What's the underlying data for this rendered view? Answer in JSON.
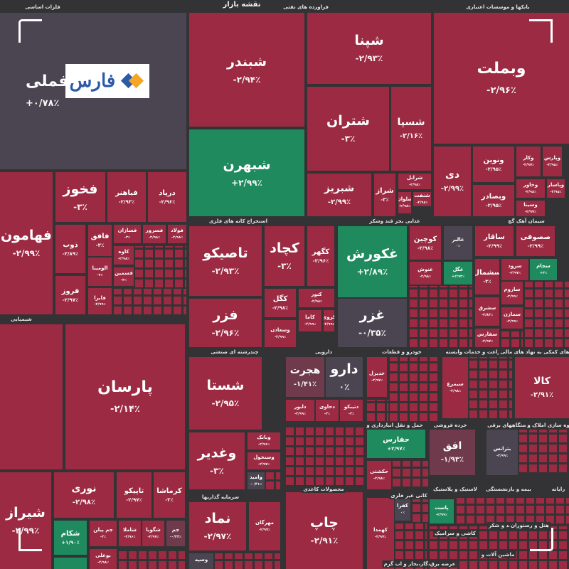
{
  "header": {
    "title": "نقشه بازار"
  },
  "logo": {
    "text": "فارس"
  },
  "colors": {
    "negative": "#9b2a42",
    "positive": "#1f8a5e",
    "neutral": "#4a4550",
    "slight_negative": "#6e3a4c",
    "background": "#333336",
    "logo_blue": "#2c5aa8",
    "logo_orange": "#f5a623"
  },
  "sectors": [
    "فلزات اساسی",
    "فراورده های نفتی",
    "بانکها و موسسات اعتباری",
    "استخراج کانه های فلزی",
    "غذایی بجز قند وشکر",
    "سیمان آهک گچ",
    "شیمیایی",
    "چندرشته ای صنعتی",
    "دارویی",
    "خودرو و قطعات",
    "زراعت و خدمات وابسته",
    "های کمکی به نهاد های مالی",
    "حمل و نقل انبارداری و",
    "خرده فروشی",
    "دستگاههای برقی",
    "انبوه سازی املاک و",
    "محصولات کاغذی",
    "سرمایه گذاریها",
    "کانی غیر فلزی",
    "لاستیک و پلاستیک",
    "بیمه و بازنشستگی",
    "رایانه",
    "قند و شکر",
    "هتل و رستوران",
    "کاشی و سرامیک",
    "ماشین آلات و",
    "عرضه برق،گاز،بخار و اب گرم"
  ],
  "tiles": [
    {
      "symbol": "فملی",
      "change": "+۰/۷۸٪",
      "tone": "gray"
    },
    {
      "symbol": "شبندر",
      "change": "-۲/۹۴٪",
      "tone": "red"
    },
    {
      "symbol": "شبهرن",
      "change": "+۲/۹۹٪",
      "tone": "green"
    },
    {
      "symbol": "شپنا",
      "change": "-۲/۹۳٪",
      "tone": "red"
    },
    {
      "symbol": "شتران",
      "change": "-۳٪",
      "tone": "red"
    },
    {
      "symbol": "شسپا",
      "change": "-۲/۱۶٪",
      "tone": "red"
    },
    {
      "symbol": "شبریز",
      "change": "-۲/۹۹٪",
      "tone": "red"
    },
    {
      "symbol": "شراز",
      "change": "-۳٪",
      "tone": "red"
    },
    {
      "symbol": "شرانل",
      "change": "-۲/۹۸٪",
      "tone": "red"
    },
    {
      "symbol": "شلوان",
      "change": "-۲/۹۸٪",
      "tone": "red"
    },
    {
      "symbol": "شنفت",
      "change": "-۲/۹۸٪",
      "tone": "red"
    },
    {
      "symbol": "وبملت",
      "change": "-۲/۹۶٪",
      "tone": "red"
    },
    {
      "symbol": "دی",
      "change": "-۲/۹۹٪",
      "tone": "red"
    },
    {
      "symbol": "ونوین",
      "change": "-۲/۹۵٪",
      "tone": "red"
    },
    {
      "symbol": "وبصادر",
      "change": "-۲/۹۵٪",
      "tone": "red"
    },
    {
      "symbol": "وکار",
      "change": "-۲/۹۷٪",
      "tone": "red"
    },
    {
      "symbol": "وپارس",
      "change": "-۲/۹۵٪",
      "tone": "red"
    },
    {
      "symbol": "وخاور",
      "change": "-۲/۹۸٪",
      "tone": "red"
    },
    {
      "symbol": "وسینا",
      "change": "-۲/۹۷٪",
      "tone": "red"
    },
    {
      "symbol": "وپاسار",
      "change": "-۲/۹۵٪",
      "tone": "red"
    },
    {
      "symbol": "فهامون",
      "change": "-۲/۹۹٪",
      "tone": "red"
    },
    {
      "symbol": "فخوز",
      "change": "-۳٪",
      "tone": "red"
    },
    {
      "symbol": "فباهنر",
      "change": "-۲/۹۳٪",
      "tone": "red"
    },
    {
      "symbol": "درپاد",
      "change": "-۲/۹۶٪",
      "tone": "red"
    },
    {
      "symbol": "ذوب",
      "change": "-۲/۸۹٪",
      "tone": "red"
    },
    {
      "symbol": "فافق",
      "change": "-۳٪",
      "tone": "red"
    },
    {
      "symbol": "الومینا",
      "change": "-۳٪",
      "tone": "red"
    },
    {
      "symbol": "فروز",
      "change": "-۲/۹۷٪",
      "tone": "red"
    },
    {
      "symbol": "فایرا",
      "change": "-۲/۹۹٪",
      "tone": "red"
    },
    {
      "symbol": "فسازان",
      "change": "-۳٪",
      "tone": "red"
    },
    {
      "symbol": "فسرور",
      "change": "-۲/۹۸٪",
      "tone": "red"
    },
    {
      "symbol": "فولاد",
      "change": "-۲/۹۸٪",
      "tone": "red"
    },
    {
      "symbol": "کاوه",
      "change": "-۲/۹۸٪",
      "tone": "red"
    },
    {
      "symbol": "فسمین",
      "change": "-۳٪",
      "tone": "red"
    },
    {
      "symbol": "تاصیکو",
      "change": "-۲/۹۳٪",
      "tone": "red"
    },
    {
      "symbol": "فزر",
      "change": "-۲/۹۶٪",
      "tone": "red"
    },
    {
      "symbol": "کچاد",
      "change": "-۳٪",
      "tone": "red"
    },
    {
      "symbol": "کگهر",
      "change": "-۲/۹۶٪",
      "tone": "red"
    },
    {
      "symbol": "کگل",
      "change": "-۲/۹۸٪",
      "tone": "red"
    },
    {
      "symbol": "وسعادن",
      "change": "-۲/۹۹٪",
      "tone": "red"
    },
    {
      "symbol": "کنور",
      "change": "-۲/۹۸٪",
      "tone": "red"
    },
    {
      "symbol": "کاما",
      "change": "-۲/۹۹٪",
      "tone": "red"
    },
    {
      "symbol": "کروی",
      "change": "-۲/۹۹٪",
      "tone": "red"
    },
    {
      "symbol": "غکورش",
      "change": "+۲/۸۹٪",
      "tone": "green"
    },
    {
      "symbol": "غزر",
      "change": "-۰/۳۵٪",
      "tone": "gray"
    },
    {
      "symbol": "کوچین",
      "change": "-۲/۹۸٪",
      "tone": "red"
    },
    {
      "symbol": "غالبر",
      "change": "۰٪",
      "tone": "gray"
    },
    {
      "symbol": "غنوش",
      "change": "-۲/۹۸٪",
      "tone": "red"
    },
    {
      "symbol": "غگل",
      "change": "+۲/۹۳٪",
      "tone": "green"
    },
    {
      "symbol": "ساقار",
      "change": "-۲/۹۹٪",
      "tone": "red"
    },
    {
      "symbol": "صصوفی",
      "change": "-۲/۹۹٪",
      "tone": "red"
    },
    {
      "symbol": "سشمال",
      "change": "-۳٪",
      "tone": "red"
    },
    {
      "symbol": "سرود",
      "change": "-۲/۹۷٪",
      "tone": "red"
    },
    {
      "symbol": "سجام",
      "change": "+۳٪",
      "tone": "green"
    },
    {
      "symbol": "سشرق",
      "change": "-۲/۸۳٪",
      "tone": "red"
    },
    {
      "symbol": "ساروم",
      "change": "-۲/۹۹٪",
      "tone": "red"
    },
    {
      "symbol": "سفارس",
      "change": "-۲/۹۷٪",
      "tone": "red"
    },
    {
      "symbol": "سمازن",
      "change": "-۲/۹۹٪",
      "tone": "red"
    },
    {
      "symbol": "پارسان",
      "change": "-۲/۱۴٪",
      "tone": "red"
    },
    {
      "symbol": "شیراز",
      "change": "-۲/۹۹٪",
      "tone": "red"
    },
    {
      "symbol": "نوری",
      "change": "-۲/۹۸٪",
      "tone": "red"
    },
    {
      "symbol": "تاپیکو",
      "change": "-۲/۹۷٪",
      "tone": "red"
    },
    {
      "symbol": "کرماشا",
      "change": "-۳٪",
      "tone": "red"
    },
    {
      "symbol": "شکام",
      "change": "+۱/۹۰٪",
      "tone": "green"
    },
    {
      "symbol": "جم پیلن",
      "change": "-۳٪",
      "tone": "red"
    },
    {
      "symbol": "شاملا",
      "change": "-۲/۹۶٪",
      "tone": "red"
    },
    {
      "symbol": "شگویا",
      "change": "-۲/۹۷٪",
      "tone": "red"
    },
    {
      "symbol": "جم",
      "change": "-۰/۳۴٪",
      "tone": "mid"
    },
    {
      "symbol": "بوعلی",
      "change": "-۲/۹۸٪",
      "tone": "red"
    },
    {
      "symbol": "شستا",
      "change": "-۲/۹۵٪",
      "tone": "red"
    },
    {
      "symbol": "وغدیر",
      "change": "-۳٪",
      "tone": "red"
    },
    {
      "symbol": "وبانک",
      "change": "-۲/۹۶٪",
      "tone": "red"
    },
    {
      "symbol": "وسنخول",
      "change": "-۲/۹۷٪",
      "tone": "red"
    },
    {
      "symbol": "واميد",
      "change": "-۰/۴۱٪",
      "tone": "gray"
    },
    {
      "symbol": "نماد",
      "change": "-۲/۹۷٪",
      "tone": "red"
    },
    {
      "symbol": "مهرگان",
      "change": "-۲/۹۷٪",
      "tone": "red"
    },
    {
      "symbol": "وسپه",
      "change": "",
      "tone": "gray"
    },
    {
      "symbol": "هجرت",
      "change": "-۱/۴۱٪",
      "tone": "mid"
    },
    {
      "symbol": "دارو",
      "change": "۰٪",
      "tone": "gray"
    },
    {
      "symbol": "دابور",
      "change": "-۲/۹۹٪",
      "tone": "red"
    },
    {
      "symbol": "دحاوی",
      "change": "-۳٪",
      "tone": "red"
    },
    {
      "symbol": "دتیبکو",
      "change": "-۳٪",
      "tone": "red"
    },
    {
      "symbol": "چاپ",
      "change": "-۲/۹۱٪",
      "tone": "red"
    },
    {
      "symbol": "خدیزل",
      "change": "-۲/۹۷٪",
      "tone": "red"
    },
    {
      "symbol": "سیمرغ",
      "change": "-۲/۹۸٪",
      "tone": "red"
    },
    {
      "symbol": "کالا",
      "change": "-۲/۹۱٪",
      "tone": "red"
    },
    {
      "symbol": "حفارس",
      "change": "+۲/۹۷٪",
      "tone": "green"
    },
    {
      "symbol": "حکشتی",
      "change": "-۲/۹۸٪",
      "tone": "red"
    },
    {
      "symbol": "افق",
      "change": "-۱/۹۳٪",
      "tone": "mid"
    },
    {
      "symbol": "بترانس",
      "change": "-۲/۹۹٪",
      "tone": "gray"
    },
    {
      "symbol": "کهمدا",
      "change": "-۲/۹۷٪",
      "tone": "red"
    },
    {
      "symbol": "کفرا",
      "change": "۰٪",
      "tone": "gray"
    },
    {
      "symbol": "پاست",
      "change": "-۲/۹۹٪",
      "tone": "green"
    }
  ]
}
